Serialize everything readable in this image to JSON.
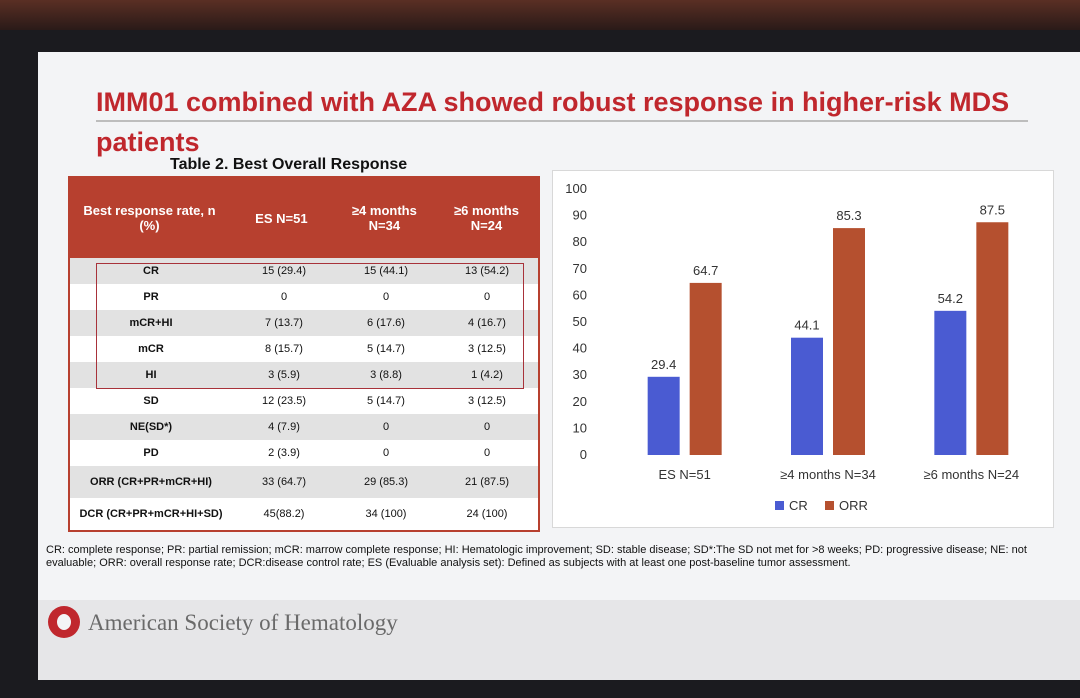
{
  "slide": {
    "title": "IMM01 combined with AZA showed robust response in higher-risk MDS patients",
    "table_caption": "Table 2. Best Overall Response",
    "table": {
      "headers": [
        "Best response rate, n (%)",
        "ES N=51",
        "≥4 months N=34",
        "≥6 months N=24"
      ],
      "rows": [
        [
          "CR",
          "15 (29.4)",
          "15 (44.1)",
          "13 (54.2)"
        ],
        [
          "PR",
          "0",
          "0",
          "0"
        ],
        [
          "mCR+HI",
          "7 (13.7)",
          "6 (17.6)",
          "4 (16.7)"
        ],
        [
          "mCR",
          "8 (15.7)",
          "5 (14.7)",
          "3 (12.5)"
        ],
        [
          "HI",
          "3 (5.9)",
          "3 (8.8)",
          "1 (4.2)"
        ],
        [
          "SD",
          "12 (23.5)",
          "5 (14.7)",
          "3 (12.5)"
        ],
        [
          "NE(SD*)",
          "4 (7.9)",
          "0",
          "0"
        ],
        [
          "PD",
          "2 (3.9)",
          "0",
          "0"
        ],
        [
          "ORR (CR+PR+mCR+HI)",
          "33 (64.7)",
          "29 (85.3)",
          "21 (87.5)"
        ],
        [
          "DCR (CR+PR+mCR+HI+SD)",
          "45(88.2)",
          "34 (100)",
          "24 (100)"
        ]
      ]
    },
    "footnote": "CR: complete response; PR: partial remission; mCR: marrow complete response; HI: Hematologic improvement; SD: stable disease; SD*:The SD not met for >8 weeks; PD: progressive disease; NE: not evaluable; ORR: overall response rate; DCR:disease control rate; ES (Evaluable analysis set): Defined as subjects with at least one post-baseline tumor assessment.",
    "org_name": "American Society of Hematology"
  },
  "chart_data": {
    "type": "bar",
    "categories": [
      "ES N=51",
      "≥4 months N=34",
      "≥6 months N=24"
    ],
    "series": [
      {
        "name": "CR",
        "values": [
          29.4,
          44.1,
          54.2
        ],
        "color": "#4a5bd2"
      },
      {
        "name": "ORR",
        "values": [
          64.7,
          85.3,
          87.5
        ],
        "color": "#b5502f"
      }
    ],
    "ylim": [
      0,
      100
    ],
    "yticks": [
      0,
      10,
      20,
      30,
      40,
      50,
      60,
      70,
      80,
      90,
      100
    ],
    "grid": false,
    "legend": "bottom",
    "title": "",
    "xlabel": "",
    "ylabel": ""
  }
}
